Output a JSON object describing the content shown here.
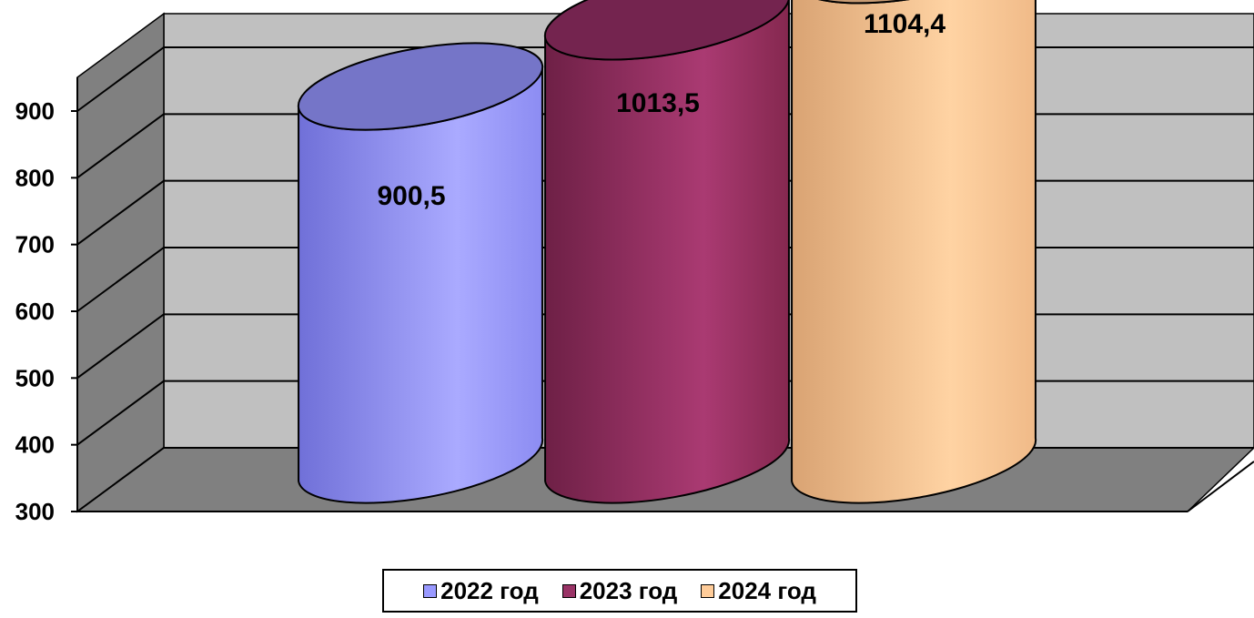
{
  "chart_data": {
    "type": "bar",
    "style": "3d-cylinder",
    "title": "",
    "xlabel": "",
    "ylabel": "",
    "categories": [
      "2022 год",
      "2023 год",
      "2024 год"
    ],
    "values": [
      900.5,
      1013.5,
      1104.4
    ],
    "data_labels": [
      "900,5",
      "1013,5",
      "1104,4"
    ],
    "ylim": [
      300,
      900
    ],
    "yticks": [
      300,
      400,
      500,
      600,
      700,
      800,
      900
    ],
    "ytick_labels": [
      "300",
      "400",
      "500",
      "600",
      "700",
      "800",
      "900"
    ],
    "grid": true,
    "legend_position": "bottom",
    "colors": {
      "2022 год": "#9999ff",
      "2023 год": "#993366",
      "2024 год": "#ffcc99",
      "back_wall": "#c0c0c0",
      "side_wall": "#808080",
      "floor": "#808080"
    }
  }
}
